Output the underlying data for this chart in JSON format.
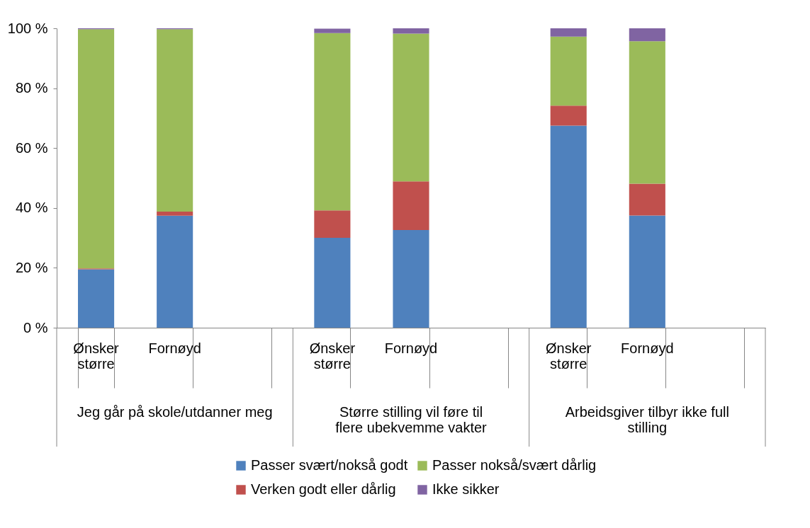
{
  "chart_data": {
    "type": "bar",
    "stacked": true,
    "categories": [
      "Ønsker større",
      "Fornøyd",
      null,
      "Ønsker større",
      "Fornøyd",
      null,
      "Ønsker større",
      "Fornøyd",
      null
    ],
    "annotations": [
      "Jeg går på skole/utdanner meg",
      "Større stilling vil føre til flere ubekvemme vakter",
      "Arbeidsgiver tilbyr ikke full stilling"
    ],
    "series": [
      {
        "name": "Passer svært/nokså godt",
        "color": "#4f81bd",
        "values": [
          19.5,
          37.4,
          null,
          30.0,
          32.6,
          null,
          67.5,
          37.5,
          null
        ]
      },
      {
        "name": "Verken godt eller dårlig",
        "color": "#c0504d",
        "values": [
          0.3,
          1.4,
          null,
          9.2,
          16.3,
          null,
          6.7,
          10.6,
          null
        ]
      },
      {
        "name": "Passer nokså/svært dårlig",
        "color": "#9bbb59",
        "values": [
          79.9,
          60.9,
          null,
          59.2,
          49.3,
          null,
          23.0,
          47.6,
          null
        ]
      },
      {
        "name": "Ikke sikker",
        "color": "#8064a2",
        "values": [
          0.3,
          0.3,
          null,
          1.5,
          1.8,
          null,
          2.8,
          4.3,
          null
        ]
      }
    ],
    "ylim": [
      0,
      100
    ],
    "yticks": [
      {
        "value": 0,
        "label": "0 %"
      },
      {
        "value": 20,
        "label": "20 %"
      },
      {
        "value": 40,
        "label": "40 %"
      },
      {
        "value": 60,
        "label": "60 %"
      },
      {
        "value": 80,
        "label": "80 %"
      },
      {
        "value": 100,
        "label": "100 %"
      }
    ],
    "grid": false,
    "legend": "bottom"
  }
}
